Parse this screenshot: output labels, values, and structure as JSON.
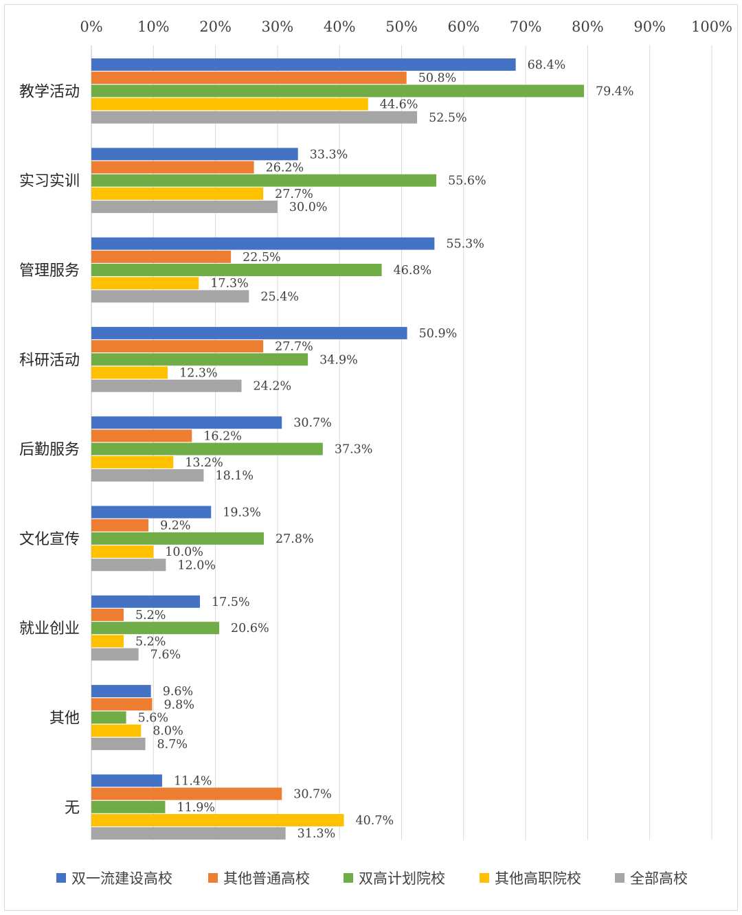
{
  "chart_data": {
    "type": "bar",
    "orientation": "horizontal",
    "title": "",
    "xlabel": "",
    "ylabel": "",
    "xlim": [
      0,
      100
    ],
    "x_tick_step": 10,
    "x_tick_suffix": "%",
    "x_axis_position": "top",
    "grid": true,
    "legend_position": "bottom",
    "categories": [
      "教学活动",
      "实习实训",
      "管理服务",
      "科研活动",
      "后勤服务",
      "文化宣传",
      "就业创业",
      "其他",
      "无"
    ],
    "series": [
      {
        "name": "双一流建设高校",
        "color": "#4472C4",
        "values": [
          68.4,
          33.3,
          55.3,
          50.9,
          30.7,
          19.3,
          17.5,
          9.6,
          11.4
        ]
      },
      {
        "name": "其他普通高校",
        "color": "#ED7D31",
        "values": [
          50.8,
          26.2,
          22.5,
          27.7,
          16.2,
          9.2,
          5.2,
          9.8,
          30.7
        ]
      },
      {
        "name": "双高计划院校",
        "color": "#70AD47",
        "values": [
          79.4,
          55.6,
          46.8,
          34.9,
          37.3,
          27.8,
          20.6,
          5.6,
          11.9
        ]
      },
      {
        "name": "其他高职院校",
        "color": "#FFC000",
        "values": [
          44.6,
          27.7,
          17.3,
          12.3,
          13.2,
          10.0,
          5.2,
          8.0,
          40.7
        ]
      },
      {
        "name": "全部高校",
        "color": "#A5A5A5",
        "values": [
          52.5,
          30.0,
          25.4,
          24.2,
          18.1,
          12.0,
          7.6,
          8.7,
          31.3
        ]
      }
    ]
  }
}
